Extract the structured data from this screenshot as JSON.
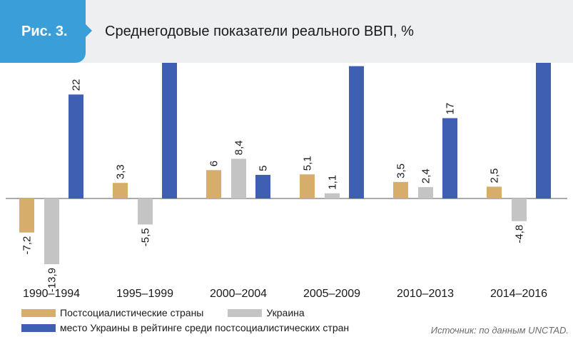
{
  "figure": {
    "badge": "Рис. 3.",
    "title": "Среднегодовые показатели реального ВВП, %"
  },
  "colors": {
    "series1": "#d6ad6a",
    "series2": "#c4c4c4",
    "series3": "#3f5fb2",
    "badge": "#3a9fd9",
    "header_bg": "#eeeff0"
  },
  "chart_data": {
    "type": "bar",
    "categories": [
      "1990–1994",
      "1995–1999",
      "2000–2004",
      "2005–2009",
      "2010–2013",
      "2014–2016"
    ],
    "series": [
      {
        "name": "Постсоциалистические страны",
        "values": [
          -7.2,
          3.3,
          6,
          5.1,
          3.5,
          2.5
        ],
        "labels": [
          "-7,2",
          "3,3",
          "6",
          "5,1",
          "3,5",
          "2,5"
        ]
      },
      {
        "name": "Украина",
        "values": [
          -13.9,
          -5.5,
          8.4,
          1.1,
          2.4,
          -4.8
        ],
        "labels": [
          "-13,9",
          "-5,5",
          "8,4",
          "1,1",
          "2,4",
          "-4,8"
        ]
      },
      {
        "name": "место Украины в рейтинге среди постсоциалистических стран",
        "values": [
          22,
          29,
          5,
          28,
          17,
          29
        ],
        "labels": [
          "22",
          "29",
          "5",
          "28",
          "17",
          "29"
        ]
      }
    ],
    "axes_shown": false,
    "grid": false,
    "legend_position": "bottom-left"
  },
  "source": "Источник: по данным UNCTAD."
}
